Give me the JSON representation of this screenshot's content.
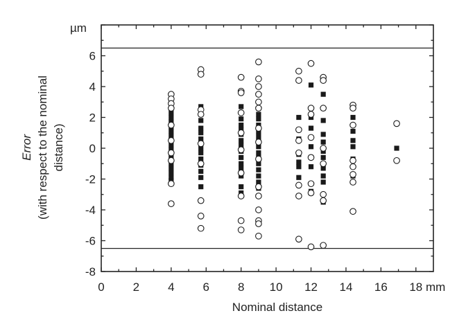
{
  "chart_data": {
    "type": "scatter",
    "title": "",
    "xlabel": "Nominal distance",
    "xunit": "mm",
    "ylabel_line1": "Error",
    "ylabel_line2": "(with respect to the nominal",
    "ylabel_line3": "distance)",
    "yunit": "µm",
    "xlim": [
      0,
      19
    ],
    "ylim": [
      -8,
      8
    ],
    "xticks": [
      0,
      2,
      4,
      6,
      8,
      10,
      12,
      14,
      16,
      18
    ],
    "yticks": [
      -8,
      -6,
      -4,
      -2,
      0,
      2,
      4,
      6
    ],
    "grid": false,
    "reference_lines": [
      6.5,
      -6.5
    ],
    "series": [
      {
        "marker": "filled-square",
        "points": [
          [
            4,
            2.3
          ],
          [
            4,
            2.0
          ],
          [
            4,
            1.7
          ],
          [
            4,
            1.4
          ],
          [
            4,
            1.1
          ],
          [
            4,
            0.8
          ],
          [
            4,
            0.5
          ],
          [
            4,
            0.2
          ],
          [
            4,
            -0.1
          ],
          [
            4,
            -0.4
          ],
          [
            4,
            -0.7
          ],
          [
            4,
            -1.0
          ],
          [
            4,
            -1.3
          ],
          [
            4,
            -1.6
          ],
          [
            4,
            -1.9
          ],
          [
            4,
            -2.1
          ],
          [
            5.7,
            2.7
          ],
          [
            5.7,
            1.8
          ],
          [
            5.7,
            1.3
          ],
          [
            5.7,
            1.0
          ],
          [
            5.7,
            0.6
          ],
          [
            5.7,
            0.3
          ],
          [
            5.7,
            0.0
          ],
          [
            5.7,
            -0.3
          ],
          [
            5.7,
            -0.7
          ],
          [
            5.7,
            -1.1
          ],
          [
            5.7,
            -1.5
          ],
          [
            5.7,
            -1.9
          ],
          [
            5.7,
            -2.5
          ],
          [
            8,
            2.7
          ],
          [
            8,
            1.9
          ],
          [
            8,
            1.5
          ],
          [
            8,
            1.2
          ],
          [
            8,
            0.9
          ],
          [
            8,
            0.5
          ],
          [
            8,
            0.2
          ],
          [
            8,
            -0.2
          ],
          [
            8,
            -0.6
          ],
          [
            8,
            -1.0
          ],
          [
            8,
            -1.3
          ],
          [
            8,
            -1.8
          ],
          [
            8,
            -2.5
          ],
          [
            8,
            -2.9
          ],
          [
            9,
            2.2
          ],
          [
            9,
            1.9
          ],
          [
            9,
            1.5
          ],
          [
            9,
            1.1
          ],
          [
            9,
            0.8
          ],
          [
            9,
            0.5
          ],
          [
            9,
            0.1
          ],
          [
            9,
            -0.3
          ],
          [
            9,
            -0.6
          ],
          [
            9,
            -1.0
          ],
          [
            9,
            -1.4
          ],
          [
            9,
            -1.8
          ],
          [
            9,
            -2.2
          ],
          [
            9,
            -2.6
          ],
          [
            11.3,
            2.0
          ],
          [
            11.3,
            0.6
          ],
          [
            11.3,
            -0.4
          ],
          [
            11.3,
            -0.9
          ],
          [
            11.3,
            -1.2
          ],
          [
            11.3,
            -1.9
          ],
          [
            12,
            4.1
          ],
          [
            12,
            2.0
          ],
          [
            12,
            1.3
          ],
          [
            12,
            0.1
          ],
          [
            12,
            -0.6
          ],
          [
            12,
            -1.2
          ],
          [
            12,
            -2.8
          ],
          [
            12.7,
            3.5
          ],
          [
            12.7,
            1.8
          ],
          [
            12.7,
            0.9
          ],
          [
            12.7,
            0.4
          ],
          [
            12.7,
            -0.2
          ],
          [
            12.7,
            -0.6
          ],
          [
            12.7,
            -1.3
          ],
          [
            12.7,
            -1.8
          ],
          [
            12.7,
            -2.2
          ],
          [
            12.7,
            -3.5
          ],
          [
            14.4,
            2.0
          ],
          [
            14.4,
            1.1
          ],
          [
            14.4,
            0.5
          ],
          [
            14.4,
            0.1
          ],
          [
            14.4,
            -0.7
          ],
          [
            14.4,
            -1.8
          ],
          [
            16.9,
            1.6
          ],
          [
            16.9,
            0.0
          ]
        ]
      },
      {
        "marker": "open-circle",
        "points": [
          [
            4,
            3.5
          ],
          [
            4,
            3.2
          ],
          [
            4,
            2.9
          ],
          [
            4,
            2.6
          ],
          [
            4,
            1.5
          ],
          [
            4,
            0.5
          ],
          [
            4,
            -0.3
          ],
          [
            4,
            -0.8
          ],
          [
            4,
            -2.3
          ],
          [
            4,
            -3.6
          ],
          [
            5.7,
            5.1
          ],
          [
            5.7,
            4.8
          ],
          [
            5.7,
            2.5
          ],
          [
            5.7,
            2.2
          ],
          [
            5.7,
            0.3
          ],
          [
            5.7,
            -1.0
          ],
          [
            5.7,
            -3.4
          ],
          [
            5.7,
            -4.4
          ],
          [
            5.7,
            -5.2
          ],
          [
            8,
            4.6
          ],
          [
            8,
            3.7
          ],
          [
            8,
            3.6
          ],
          [
            8,
            2.3
          ],
          [
            8,
            1.0
          ],
          [
            8,
            -0.1
          ],
          [
            8,
            -1.6
          ],
          [
            8,
            -3.1
          ],
          [
            8,
            -4.7
          ],
          [
            8,
            -5.3
          ],
          [
            9,
            5.6
          ],
          [
            9,
            4.5
          ],
          [
            9,
            4.0
          ],
          [
            9,
            3.5
          ],
          [
            9,
            3.0
          ],
          [
            9,
            2.6
          ],
          [
            9,
            1.3
          ],
          [
            9,
            0.4
          ],
          [
            9,
            -0.7
          ],
          [
            9,
            -2.5
          ],
          [
            9,
            -3.1
          ],
          [
            9,
            -4.0
          ],
          [
            9,
            -4.7
          ],
          [
            9,
            -4.9
          ],
          [
            9,
            -5.7
          ],
          [
            11.3,
            5.0
          ],
          [
            11.3,
            4.4
          ],
          [
            11.3,
            1.2
          ],
          [
            11.3,
            0.5
          ],
          [
            11.3,
            -0.3
          ],
          [
            11.3,
            -2.4
          ],
          [
            11.3,
            -3.1
          ],
          [
            11.3,
            -5.9
          ],
          [
            12,
            5.5
          ],
          [
            12,
            2.6
          ],
          [
            12,
            2.2
          ],
          [
            12,
            0.7
          ],
          [
            12,
            -0.6
          ],
          [
            12,
            -2.3
          ],
          [
            12,
            -2.9
          ],
          [
            12,
            -6.4
          ],
          [
            12.7,
            4.6
          ],
          [
            12.7,
            4.4
          ],
          [
            12.7,
            2.6
          ],
          [
            12.7,
            0.0
          ],
          [
            12.7,
            -1.0
          ],
          [
            12.7,
            -3.0
          ],
          [
            12.7,
            -3.4
          ],
          [
            12.7,
            -6.3
          ],
          [
            14.4,
            2.8
          ],
          [
            14.4,
            2.6
          ],
          [
            14.4,
            1.5
          ],
          [
            14.4,
            -0.8
          ],
          [
            14.4,
            -1.2
          ],
          [
            14.4,
            -1.7
          ],
          [
            14.4,
            -2.2
          ],
          [
            14.4,
            -4.1
          ],
          [
            16.9,
            1.6
          ],
          [
            16.9,
            -0.8
          ]
        ]
      }
    ]
  }
}
